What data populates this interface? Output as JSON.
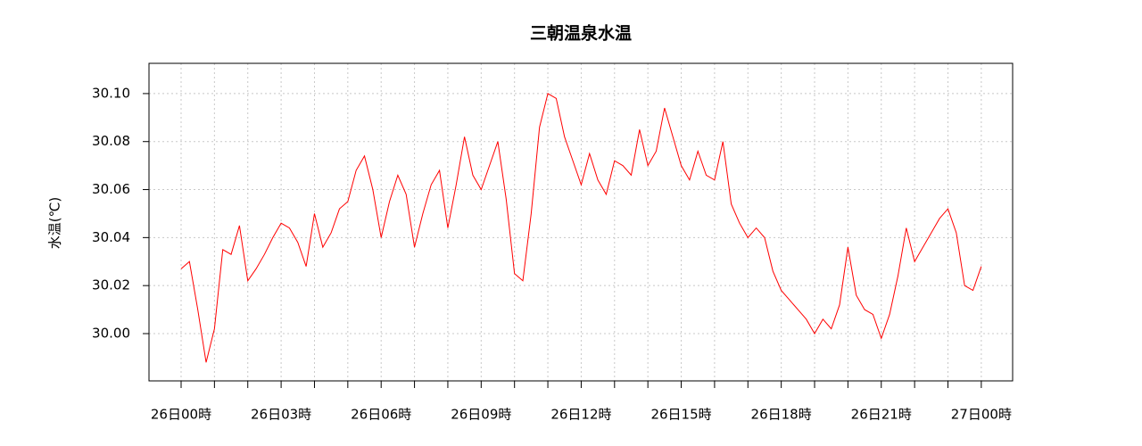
{
  "chart_data": {
    "type": "line",
    "title": "三朝温泉水温",
    "ylabel": "水温(℃)",
    "x": [
      0,
      0.25,
      0.5,
      0.75,
      1,
      1.25,
      1.5,
      1.75,
      2,
      2.25,
      2.5,
      2.75,
      3,
      3.25,
      3.5,
      3.75,
      4,
      4.25,
      4.5,
      4.75,
      5,
      5.25,
      5.5,
      5.75,
      6,
      6.25,
      6.5,
      6.75,
      7,
      7.25,
      7.5,
      7.75,
      8,
      8.25,
      8.5,
      8.75,
      9,
      9.25,
      9.5,
      9.75,
      10,
      10.25,
      10.5,
      10.75,
      11,
      11.25,
      11.5,
      11.75,
      12,
      12.25,
      12.5,
      12.75,
      13,
      13.25,
      13.5,
      13.75,
      14,
      14.25,
      14.5,
      14.75,
      15,
      15.25,
      15.5,
      15.75,
      16,
      16.25,
      16.5,
      16.75,
      17,
      17.25,
      17.5,
      17.75,
      18,
      18.25,
      18.5,
      18.75,
      19,
      19.25,
      19.5,
      19.75,
      20,
      20.25,
      20.5,
      20.75,
      21,
      21.25,
      21.5,
      21.75,
      22,
      22.25,
      22.5,
      22.75,
      23,
      23.25,
      23.5,
      23.75,
      24
    ],
    "series": [
      {
        "color": "#ff0000",
        "values": [
          30.027,
          30.03,
          30.01,
          29.988,
          30.002,
          30.035,
          30.033,
          30.045,
          30.022,
          30.027,
          30.033,
          30.04,
          30.046,
          30.044,
          30.038,
          30.028,
          30.05,
          30.036,
          30.042,
          30.052,
          30.055,
          30.068,
          30.074,
          30.06,
          30.04,
          30.055,
          30.066,
          30.058,
          30.036,
          30.05,
          30.062,
          30.068,
          30.044,
          30.062,
          30.082,
          30.066,
          30.06,
          30.07,
          30.08,
          30.056,
          30.025,
          30.022,
          30.05,
          30.086,
          30.1,
          30.098,
          30.082,
          30.072,
          30.062,
          30.075,
          30.064,
          30.058,
          30.072,
          30.07,
          30.066,
          30.085,
          30.07,
          30.076,
          30.094,
          30.082,
          30.07,
          30.064,
          30.076,
          30.066,
          30.064,
          30.08,
          30.054,
          30.046,
          30.04,
          30.044,
          30.04,
          30.026,
          30.018,
          30.014,
          30.01,
          30.006,
          30.0,
          30.006,
          30.002,
          30.012,
          30.036,
          30.016,
          30.01,
          30.008,
          29.998,
          30.008,
          30.024,
          30.044,
          30.03,
          30.036,
          30.042,
          30.048,
          30.052,
          30.042,
          30.02,
          30.018,
          30.028
        ]
      }
    ],
    "xlim": [
      -0.963,
      24.94
    ],
    "xticks": [
      {
        "value": 0,
        "label": "26日00時"
      },
      {
        "value": 3,
        "label": "26日03時"
      },
      {
        "value": 6,
        "label": "26日06時"
      },
      {
        "value": 9,
        "label": "26日09時"
      },
      {
        "value": 12,
        "label": "26日12時"
      },
      {
        "value": 15,
        "label": "26日15時"
      },
      {
        "value": 18,
        "label": "26日18時"
      },
      {
        "value": 21,
        "label": "26日21時"
      },
      {
        "value": 24,
        "label": "27日00時"
      }
    ],
    "xminor_ticks": [
      1,
      2,
      4,
      5,
      7,
      8,
      10,
      11,
      13,
      14,
      16,
      17,
      19,
      20,
      22,
      23
    ],
    "ylim": [
      29.9803,
      30.1126
    ],
    "yticks": [
      {
        "value": 30,
        "label": "30.00"
      },
      30.02,
      30.04,
      30.06,
      30.08,
      {
        "value": 30.1,
        "label": "30.10"
      }
    ],
    "grid": true
  }
}
